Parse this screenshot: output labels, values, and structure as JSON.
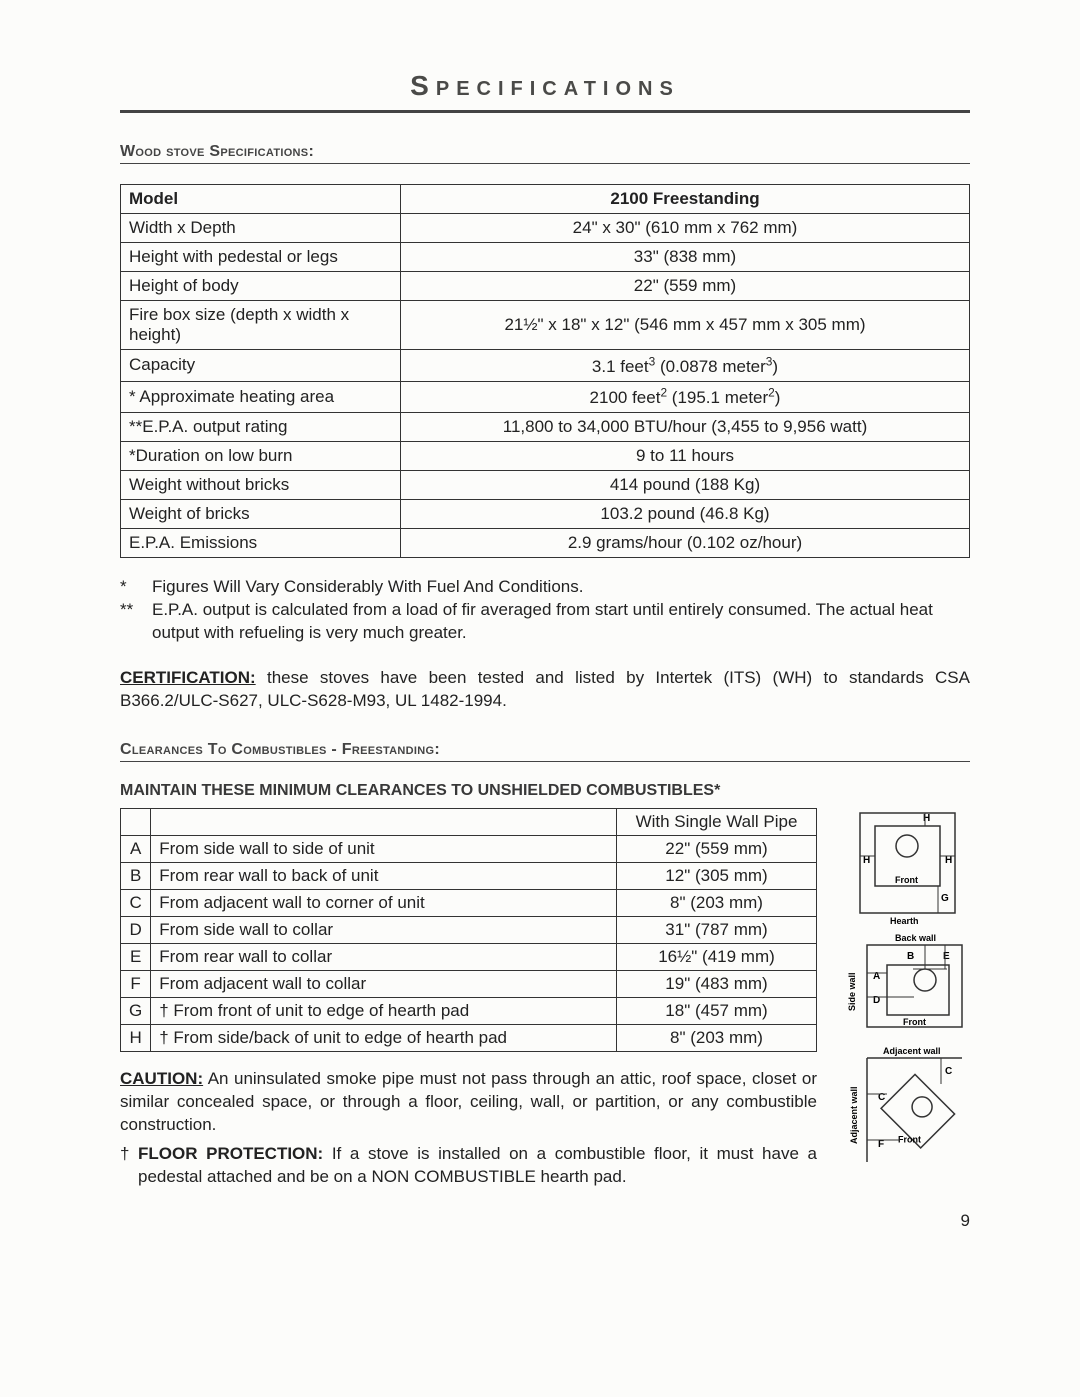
{
  "title": "Specifications",
  "pageNumber": "9",
  "section1": {
    "label": "Wood stove Specifications:",
    "header": {
      "c1": "Model",
      "c2": "2100 Freestanding"
    },
    "rows": [
      {
        "label": "Width x Depth",
        "value": "24\" x 30\" (610 mm x 762 mm)"
      },
      {
        "label": "Height with pedestal or legs",
        "value": "33\"  (838 mm)"
      },
      {
        "label": "Height of body",
        "value": "22\"  (559 mm)"
      },
      {
        "label": "Fire box size (depth x width x height)",
        "value": "21½\" x 18\" x 12\" (546 mm x 457 mm x 305 mm)"
      },
      {
        "label": "Capacity",
        "value": "3.1 feet³  (0.0878 meter³)"
      },
      {
        "label": "* Approximate heating area",
        "value": "2100 feet²  (195.1 meter²)"
      },
      {
        "label": "**E.P.A. output rating",
        "value": "11,800 to 34,000 BTU/hour (3,455 to 9,956 watt)"
      },
      {
        "label": "*Duration on low burn",
        "value": "9 to 11 hours"
      },
      {
        "label": "Weight without bricks",
        "value": "414 pound (188 Kg)"
      },
      {
        "label": "Weight of bricks",
        "value": "103.2 pound (46.8 Kg)"
      },
      {
        "label": "E.P.A. Emissions",
        "value": "2.9 grams/hour (0.102 oz/hour)"
      }
    ]
  },
  "notes": {
    "n1_ast": "*",
    "n1_text": "Figures Will Vary Considerably With Fuel And Conditions.",
    "n2_ast": "**",
    "n2_text": "E.P.A. output is calculated from a load of fir averaged from start until entirely consumed. The actual heat output with refueling is very much greater."
  },
  "cert": {
    "label": "CERTIFICATION:",
    "text": "  these stoves have been tested and listed by Intertek (ITS) (WH) to standards CSA B366.2/ULC-S627, ULC-S628-M93, UL 1482-1994."
  },
  "section2": {
    "label": "Clearances To Combustibles - Freestanding:",
    "tableTitle": "MAINTAIN THESE MINIMUM CLEARANCES TO UNSHIELDED COMBUSTIBLES*",
    "headerValue": "With Single Wall Pipe",
    "rows": [
      {
        "key": "A",
        "desc": "From side wall to side of unit",
        "val": "22\" (559 mm)"
      },
      {
        "key": "B",
        "desc": "From rear wall to back of unit",
        "val": "12\" (305 mm)"
      },
      {
        "key": "C",
        "desc": "From adjacent wall to corner of unit",
        "val": "8\" (203 mm)"
      },
      {
        "key": "D",
        "desc": "From side wall to collar",
        "val": "31\" (787 mm)"
      },
      {
        "key": "E",
        "desc": "From rear wall to collar",
        "val": "16½\" (419 mm)"
      },
      {
        "key": "F",
        "desc": "From adjacent wall to collar",
        "val": "19\" (483 mm)"
      },
      {
        "key": "G",
        "desc": "† From front of unit to edge of hearth pad",
        "val": "18\" (457 mm)"
      },
      {
        "key": "H",
        "desc": "† From side/back of unit to edge of hearth pad",
        "val": "8\" (203 mm)"
      }
    ]
  },
  "caution": {
    "label": "CAUTION:",
    "text": "An uninsulated smoke pipe must not pass through an attic, roof space, closet or similar concealed space, or through a floor, ceiling, wall, or partition, or any combustible construction."
  },
  "floor": {
    "dagger": "†",
    "label": "FLOOR PROTECTION:",
    "text": " If a stove is installed on a combustible floor, it must have a pedestal attached and be on a NON COMBUSTIBLE hearth pad."
  },
  "diagramLabels": {
    "front": "Front",
    "hearth": "Hearth",
    "backwall": "Back wall",
    "sidewall": "Side wall",
    "adjwall": "Adjacent wall"
  }
}
